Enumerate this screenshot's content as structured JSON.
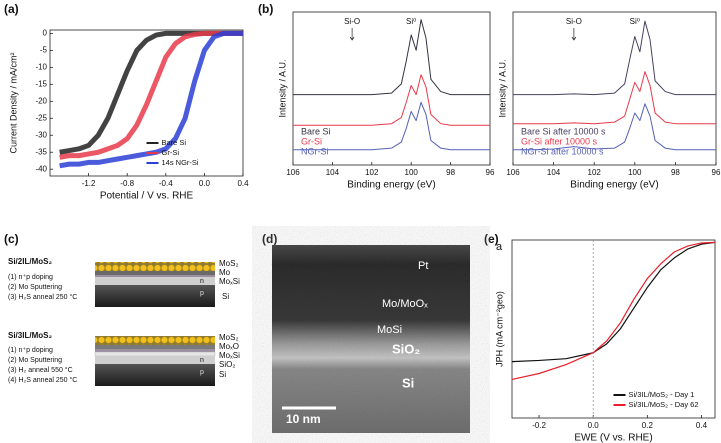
{
  "panel_labels": [
    "(a)",
    "(b)",
    "(c)",
    "(d)",
    "(e)"
  ],
  "chart_data": [
    {
      "type": "line",
      "x_label": "Potential / V vs. RHE",
      "y_label": "Current Density / mA/cm²",
      "x": [
        -1.5,
        -1.4,
        -1.3,
        -1.2,
        -1.1,
        -1.0,
        -0.9,
        -0.8,
        -0.7,
        -0.6,
        -0.5,
        -0.4,
        -0.3,
        -0.2,
        -0.1,
        0,
        0.1,
        0.2,
        0.3,
        0.4
      ],
      "series": [
        {
          "name": "Bare Si",
          "color": "#222222",
          "values": [
            -35,
            -34.5,
            -34,
            -33,
            -30,
            -25,
            -18,
            -11,
            -5,
            -2,
            -0.5,
            0,
            0,
            0,
            0,
            0,
            0,
            0,
            0,
            0
          ]
        },
        {
          "name": "Gr-Si",
          "color": "#e8394a",
          "values": [
            -36.5,
            -36,
            -36,
            -35.5,
            -35,
            -34,
            -33,
            -31,
            -27,
            -21,
            -14,
            -7,
            -3,
            -1,
            -0.3,
            0,
            0,
            0,
            0,
            0
          ]
        },
        {
          "name": "14s NGr-Si",
          "color": "#2a3fd6",
          "values": [
            -39,
            -38.5,
            -38.5,
            -38,
            -38,
            -37.5,
            -37,
            -36.5,
            -36,
            -35.5,
            -35,
            -34,
            -31,
            -25,
            -14,
            -5,
            -1,
            0,
            0,
            0
          ]
        }
      ],
      "xlim": [
        -1.6,
        0.4
      ],
      "ylim": [
        -42,
        1
      ],
      "xticks": [
        -1.2,
        -0.8,
        -0.4,
        {
          "value": 0,
          "label": "0.0"
        },
        0.4
      ],
      "yticks": [
        -40,
        -35,
        -30,
        -25,
        -20,
        -15,
        -10,
        -5,
        0
      ],
      "legend": "lower right",
      "legend_style": "line",
      "line_width": 5
    },
    {
      "type": "line",
      "x_label": "Binding energy (eV)",
      "y_label": "Intensity / A.U.",
      "x": [
        106,
        105,
        104,
        103,
        102,
        101,
        100.5,
        100.25,
        100,
        99.75,
        99.5,
        99.25,
        99,
        98.5,
        98,
        97,
        96
      ],
      "series": [
        {
          "name": "Bare Si",
          "color": "#333344",
          "values": [
            4.6,
            4.6,
            4.6,
            4.6,
            4.6,
            4.7,
            5.3,
            6.8,
            8.5,
            7.5,
            9.5,
            8.3,
            5.6,
            4.8,
            4.6,
            4.6,
            4.6
          ]
        },
        {
          "name": "Gr-Si",
          "color": "#e8394a",
          "values": [
            2.6,
            2.6,
            2.6,
            2.6,
            2.6,
            2.7,
            3.1,
            4.1,
            5.2,
            4.6,
            5.9,
            5.1,
            3.3,
            2.7,
            2.6,
            2.6,
            2.6
          ]
        },
        {
          "name": "NGr-Si",
          "color": "#5560b8",
          "values": [
            1.0,
            1.0,
            1.0,
            1.0,
            1.0,
            1.1,
            1.5,
            2.4,
            3.5,
            2.9,
            4.1,
            3.3,
            1.6,
            1.1,
            1.0,
            1.0,
            1.0
          ]
        }
      ],
      "xlim": [
        106,
        96
      ],
      "ylim": [
        0,
        10
      ],
      "xticks": [
        106,
        104,
        102,
        100,
        98,
        96
      ],
      "annotations": [
        {
          "text": "Si-O",
          "x": 103,
          "arrow": true
        },
        {
          "text": "Si⁰",
          "x": 100,
          "arrow": false
        }
      ],
      "legend": "lower left",
      "legend_style": "text",
      "line_width": 1
    },
    {
      "type": "line",
      "x_label": "Binding energy (eV)",
      "y_label": "Intensity / A.U.",
      "x": [
        106,
        105,
        104,
        103,
        102,
        101,
        100.5,
        100.25,
        100,
        99.75,
        99.5,
        99.25,
        99,
        98.5,
        98,
        97,
        96
      ],
      "series": [
        {
          "name": "Bare Si  after 10000 s",
          "color": "#4a4060",
          "values": [
            4.6,
            4.6,
            4.6,
            4.65,
            4.6,
            4.7,
            5.3,
            6.9,
            8.4,
            7.4,
            9.4,
            8.2,
            5.5,
            4.8,
            4.6,
            4.6,
            4.6
          ]
        },
        {
          "name": "Gr-Si after 10000 s",
          "color": "#e8394a",
          "values": [
            2.7,
            2.7,
            2.7,
            2.75,
            2.7,
            2.8,
            3.2,
            4.3,
            5.4,
            4.8,
            6.1,
            5.2,
            3.4,
            2.8,
            2.7,
            2.7,
            2.7
          ]
        },
        {
          "name": "NGr-Si after 10000 s",
          "color": "#5560b8",
          "values": [
            1.0,
            1.0,
            1.05,
            1.2,
            1.05,
            1.1,
            1.5,
            2.4,
            3.4,
            2.9,
            4.0,
            3.2,
            1.6,
            1.1,
            1.0,
            1.0,
            1.0
          ]
        }
      ],
      "xlim": [
        106,
        96
      ],
      "ylim": [
        0,
        10
      ],
      "xticks": [
        106,
        104,
        102,
        100,
        98,
        96
      ],
      "annotations": [
        {
          "text": "Si-O",
          "x": 103,
          "arrow": true
        },
        {
          "text": "Si⁰",
          "x": 100,
          "arrow": false
        }
      ],
      "legend": "lower left",
      "legend_style": "text",
      "line_width": 1
    },
    {
      "type": "line",
      "x_label": "EWE (V vs. RHE)",
      "y_label": "JPH (mA cm⁻²geo)",
      "corner_text": "a",
      "x": [
        -0.3,
        -0.2,
        -0.1,
        0,
        0.05,
        0.1,
        0.15,
        0.2,
        0.25,
        0.3,
        0.35,
        0.4,
        0.45
      ],
      "series": [
        {
          "name": "Si/3IL/MoS₂ - Day 1",
          "color": "#111111",
          "values": [
            -15.5,
            -15.3,
            -15,
            -14,
            -12.5,
            -10,
            -6.5,
            -3,
            0,
            2,
            3.5,
            4.3,
            4.6
          ]
        },
        {
          "name": "Si/3IL/MoS₂ - Day 62",
          "color": "#e8202a",
          "values": [
            -18.5,
            -17.5,
            -16,
            -14,
            -12,
            -9,
            -5,
            -1.5,
            1,
            3,
            4,
            4.5,
            4.6
          ]
        }
      ],
      "xlim": [
        -0.3,
        0.45
      ],
      "ylim": [
        -25,
        5
      ],
      "xticks": [
        -0.2,
        {
          "value": 0,
          "label": "0.0"
        },
        0.2,
        0.4
      ],
      "reference_x": 0,
      "legend": "lower right",
      "legend_style": "line",
      "line_width": 1.2
    }
  ],
  "diagram_c": {
    "stacks": [
      {
        "title": "Si/2IL/MoS₂",
        "steps": [
          "(1) n⁺p doping",
          "(2) Mo Sputtering",
          "(3) H₂S anneal 250 °C"
        ],
        "layers": [
          "MoS₂",
          "Mo",
          "MoₓSi"
        ],
        "doping": [
          "n",
          "p"
        ],
        "substrate": "Si"
      },
      {
        "title": "Si/3IL/MoS₂",
        "steps": [
          "(1) n⁺p doping",
          "(2) Mo Sputtering",
          "(3) H₂ anneal 550 °C",
          "(4) H₂S anneal 250 °C"
        ],
        "layers": [
          "MoS₂",
          "MoₓO",
          "MoₓSi",
          "SiO₂"
        ],
        "doping": [
          "n",
          "p"
        ],
        "substrate": "Si"
      }
    ]
  },
  "image_d": {
    "layers": [
      "Pt",
      "Mo/MoOₓ",
      "MoSi",
      "SiO₂",
      "Si"
    ],
    "scale_bar": "10 nm"
  }
}
